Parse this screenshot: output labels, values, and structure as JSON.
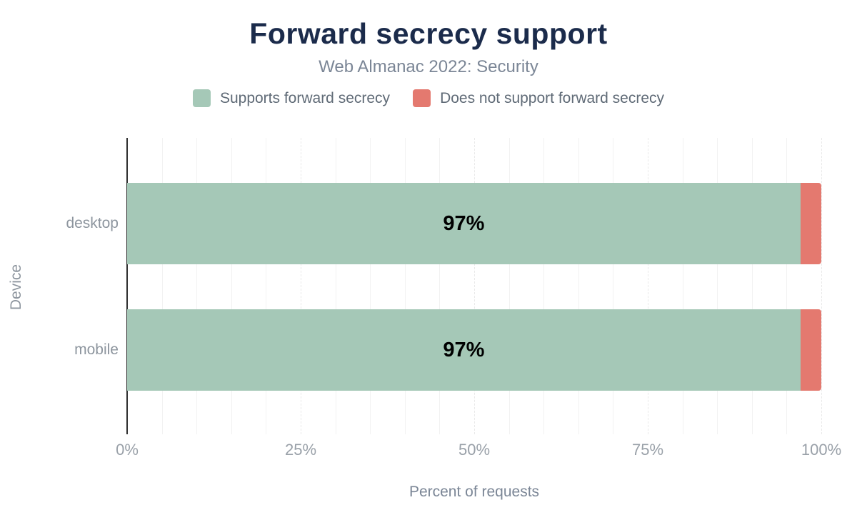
{
  "chart_data": {
    "type": "bar",
    "orientation": "horizontal",
    "title": "Forward secrecy support",
    "subtitle": "Web Almanac 2022: Security",
    "xlabel": "Percent of requests",
    "ylabel": "Device",
    "categories": [
      "desktop",
      "mobile"
    ],
    "series": [
      {
        "name": "Supports forward secrecy",
        "color": "#a5c8b7",
        "values": [
          97,
          97
        ]
      },
      {
        "name": "Does not support forward secrecy",
        "color": "#e4796f",
        "values": [
          3,
          3
        ]
      }
    ],
    "bar_value_labels": [
      "97%",
      "97%"
    ],
    "xlim": [
      0,
      100
    ],
    "x_ticks": [
      "0%",
      "25%",
      "50%",
      "75%",
      "100%"
    ],
    "grid": {
      "orientation": "vertical",
      "minor_step_pct": 5,
      "major_step_pct": 25
    },
    "legend_position": "top"
  },
  "colors": {
    "background": "#ffffff",
    "title": "#1b2b4b",
    "subtitle": "#7b8696",
    "legend_text": "#5f6a76",
    "axis_label": "#8d959e",
    "tick_label": "#99a0a8",
    "value_label": "#000000",
    "axis_line": "#2f2f2f",
    "gridline_minor": "#f2f2f2",
    "gridline_major": "#e9e9e9"
  }
}
